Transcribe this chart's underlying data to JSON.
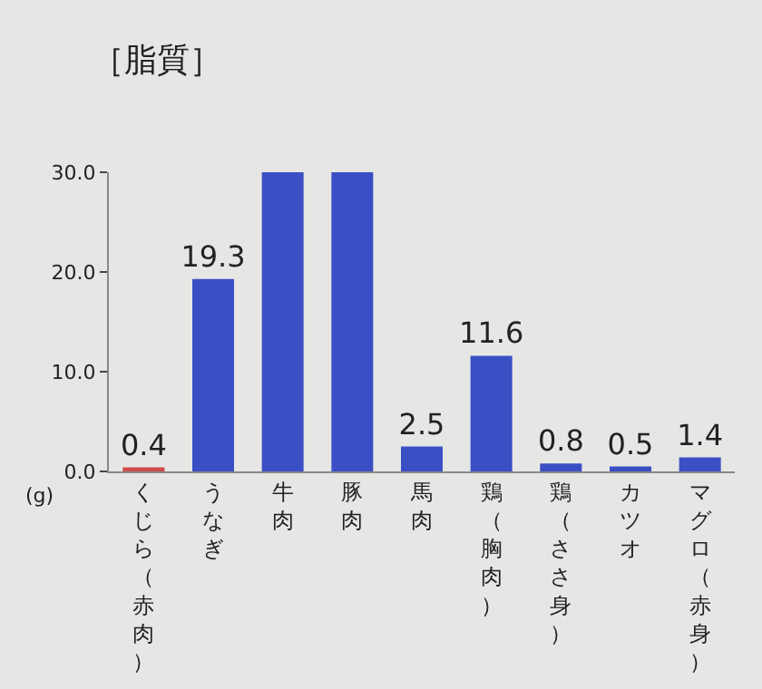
{
  "chart_data": {
    "type": "bar",
    "title": "［脂質］",
    "ylabel": "(g)",
    "categories": [
      "くじら（赤肉）",
      "うなぎ",
      "牛肉",
      "豚肉",
      "馬肉",
      "鶏（胸肉）",
      "鶏（ささ身）",
      "カツオ",
      "マグロ（赤身）"
    ],
    "values": [
      0.4,
      19.3,
      30,
      30,
      2.5,
      11.6,
      0.8,
      0.5,
      1.4
    ],
    "colors": [
      "#d04a4a",
      "#3a4fc4",
      "#3a4fc4",
      "#3a4fc4",
      "#3a4fc4",
      "#3a4fc4",
      "#3a4fc4",
      "#3a4fc4",
      "#3a4fc4"
    ],
    "value_labels": [
      "0.4",
      "19.3",
      null,
      null,
      "2.5",
      "11.6",
      "0.8",
      "0.5",
      "1.4"
    ],
    "ylim": [
      0,
      30
    ],
    "yticks": [
      {
        "value": 0,
        "label": "0.0"
      },
      {
        "value": 10,
        "label": "10.0"
      },
      {
        "value": 20,
        "label": "20.0"
      },
      {
        "value": 30,
        "label": "30.0"
      }
    ],
    "grid": false
  }
}
